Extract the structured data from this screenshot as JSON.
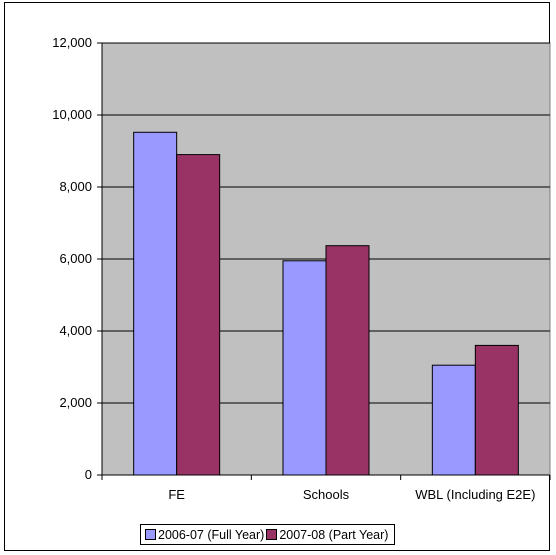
{
  "chart_data": {
    "type": "bar",
    "categories": [
      "FE",
      "Schools",
      "WBL (Including E2E)"
    ],
    "series": [
      {
        "name": "2006-07 (Full Year)",
        "values": [
          9520,
          5950,
          3050
        ],
        "color": "#9999ff"
      },
      {
        "name": "2007-08 (Part Year)",
        "values": [
          8900,
          6370,
          3600
        ],
        "color": "#993366"
      }
    ],
    "ylim": [
      0,
      12000
    ],
    "yticks": [
      0,
      2000,
      4000,
      6000,
      8000,
      10000,
      12000
    ],
    "ytick_labels": [
      "0",
      "2,000",
      "4,000",
      "6,000",
      "8,000",
      "10,000",
      "12,000"
    ],
    "plot_background": "#c0c0c0",
    "grid": true,
    "legend_position": "bottom"
  }
}
